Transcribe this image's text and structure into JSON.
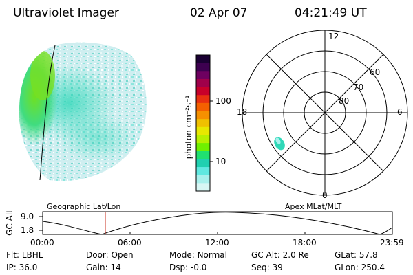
{
  "header": {
    "title": "Ultraviolet Imager",
    "date": "02 Apr 07",
    "time": "04:21:49 UT"
  },
  "colorbar": {
    "label": "photon cm⁻²s⁻¹",
    "ticks": [
      "100",
      "10"
    ],
    "colors": [
      "#1a0033",
      "#3d0050",
      "#6e0060",
      "#a0004a",
      "#c8002a",
      "#e83010",
      "#f46000",
      "#f59000",
      "#f0c000",
      "#e8e800",
      "#b8f000",
      "#70f000",
      "#20e070",
      "#20d0b0",
      "#60e8e0",
      "#a8f0ec",
      "#d8f6f4"
    ]
  },
  "polar": {
    "mlt_labels": [
      "12",
      "18",
      "6",
      "0"
    ],
    "lat_labels": [
      "60",
      "70",
      "80"
    ]
  },
  "timeline": {
    "y_axis_label": "GC Alt",
    "y_ticks": [
      "9.0",
      "1.8"
    ],
    "left_label": "Geographic Lat/Lon",
    "right_label": "Apex MLat/MLT",
    "x_ticks": [
      "00:00",
      "06:00",
      "12:00",
      "18:00",
      "23:59"
    ],
    "current_time_marker_color": "#c83020"
  },
  "info": {
    "flt_label": "Flt:",
    "flt_value": "LBHL",
    "ip_label": "IP:",
    "ip_value": "36.0",
    "door_label": "Door:",
    "door_value": "Open",
    "gain_label": "Gain:",
    "gain_value": "14",
    "mode_label": "Mode:",
    "mode_value": "Normal",
    "dsp_label": "Dsp:",
    "dsp_value": "-0.0",
    "gcalt_label": "GC Alt:",
    "gcalt_value": "2.0 Re",
    "seq_label": "Seq:",
    "seq_value": "39",
    "glat_label": "GLat:",
    "glat_value": "57.8",
    "glon_label": "GLon:",
    "glon_value": "250.4"
  }
}
